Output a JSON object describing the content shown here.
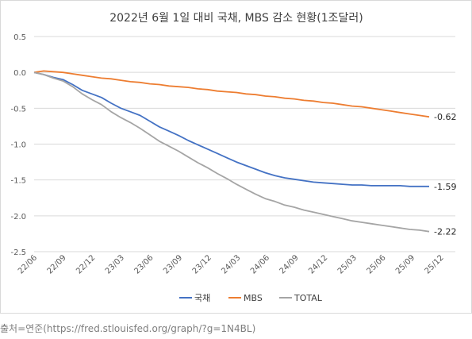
{
  "caption": "출처=연준(https://fred.stlouisfed.org/graph/?g=1N4BL)",
  "chart_data": {
    "type": "line",
    "title": "2022년 6월 1일 대비 국채, MBS 감소 현황(1조달러)",
    "xlabel": "",
    "ylabel": "",
    "ylim": [
      -2.5,
      0.5
    ],
    "y_ticks": [
      "0.5",
      "0.0",
      "-0.5",
      "-1.0",
      "-1.5",
      "-2.0",
      "-2.5"
    ],
    "x_ticks": [
      "22/06",
      "22/09",
      "22/12",
      "23/03",
      "23/06",
      "23/09",
      "23/12",
      "24/03",
      "24/06",
      "24/09",
      "24/12",
      "25/03",
      "25/06",
      "25/09",
      "25/12"
    ],
    "grid": "horizontal",
    "legend_position": "bottom",
    "series": [
      {
        "name": "국채",
        "color": "#4472c4",
        "end_label": "-1.59",
        "x": [
          0,
          1,
          2,
          3,
          4,
          5,
          6,
          7,
          8,
          9,
          10,
          11,
          12,
          13,
          14,
          15,
          16,
          17,
          18,
          19,
          20,
          21,
          22,
          23,
          24,
          25,
          26,
          27,
          28,
          29,
          30,
          31,
          32,
          33,
          34,
          35,
          36,
          37,
          38,
          39,
          40,
          41
        ],
        "values": [
          0.0,
          -0.03,
          -0.07,
          -0.1,
          -0.17,
          -0.25,
          -0.3,
          -0.35,
          -0.43,
          -0.5,
          -0.55,
          -0.6,
          -0.68,
          -0.76,
          -0.82,
          -0.88,
          -0.95,
          -1.01,
          -1.07,
          -1.13,
          -1.19,
          -1.25,
          -1.3,
          -1.35,
          -1.4,
          -1.44,
          -1.47,
          -1.49,
          -1.51,
          -1.53,
          -1.54,
          -1.55,
          -1.56,
          -1.57,
          -1.57,
          -1.58,
          -1.58,
          -1.58,
          -1.58,
          -1.59,
          -1.59,
          -1.59
        ]
      },
      {
        "name": "MBS",
        "color": "#ed7d31",
        "end_label": "-0.62",
        "x": [
          0,
          1,
          2,
          3,
          4,
          5,
          6,
          7,
          8,
          9,
          10,
          11,
          12,
          13,
          14,
          15,
          16,
          17,
          18,
          19,
          20,
          21,
          22,
          23,
          24,
          25,
          26,
          27,
          28,
          29,
          30,
          31,
          32,
          33,
          34,
          35,
          36,
          37,
          38,
          39,
          40,
          41
        ],
        "values": [
          0.0,
          0.02,
          0.01,
          0.0,
          -0.02,
          -0.04,
          -0.06,
          -0.08,
          -0.09,
          -0.11,
          -0.13,
          -0.14,
          -0.16,
          -0.17,
          -0.19,
          -0.2,
          -0.21,
          -0.23,
          -0.24,
          -0.26,
          -0.27,
          -0.28,
          -0.3,
          -0.31,
          -0.33,
          -0.34,
          -0.36,
          -0.37,
          -0.39,
          -0.4,
          -0.42,
          -0.43,
          -0.45,
          -0.47,
          -0.48,
          -0.5,
          -0.52,
          -0.54,
          -0.56,
          -0.58,
          -0.6,
          -0.62
        ]
      },
      {
        "name": "TOTAL",
        "color": "#a5a5a5",
        "end_label": "-2.22",
        "x": [
          0,
          1,
          2,
          3,
          4,
          5,
          6,
          7,
          8,
          9,
          10,
          11,
          12,
          13,
          14,
          15,
          16,
          17,
          18,
          19,
          20,
          21,
          22,
          23,
          24,
          25,
          26,
          27,
          28,
          29,
          30,
          31,
          32,
          33,
          34,
          35,
          36,
          37,
          38,
          39,
          40,
          41
        ],
        "values": [
          0.0,
          -0.03,
          -0.08,
          -0.12,
          -0.2,
          -0.3,
          -0.38,
          -0.45,
          -0.55,
          -0.63,
          -0.7,
          -0.78,
          -0.87,
          -0.96,
          -1.03,
          -1.1,
          -1.18,
          -1.26,
          -1.33,
          -1.41,
          -1.48,
          -1.56,
          -1.63,
          -1.7,
          -1.76,
          -1.8,
          -1.85,
          -1.88,
          -1.92,
          -1.95,
          -1.98,
          -2.01,
          -2.04,
          -2.07,
          -2.09,
          -2.11,
          -2.13,
          -2.15,
          -2.17,
          -2.19,
          -2.2,
          -2.22
        ]
      }
    ]
  }
}
